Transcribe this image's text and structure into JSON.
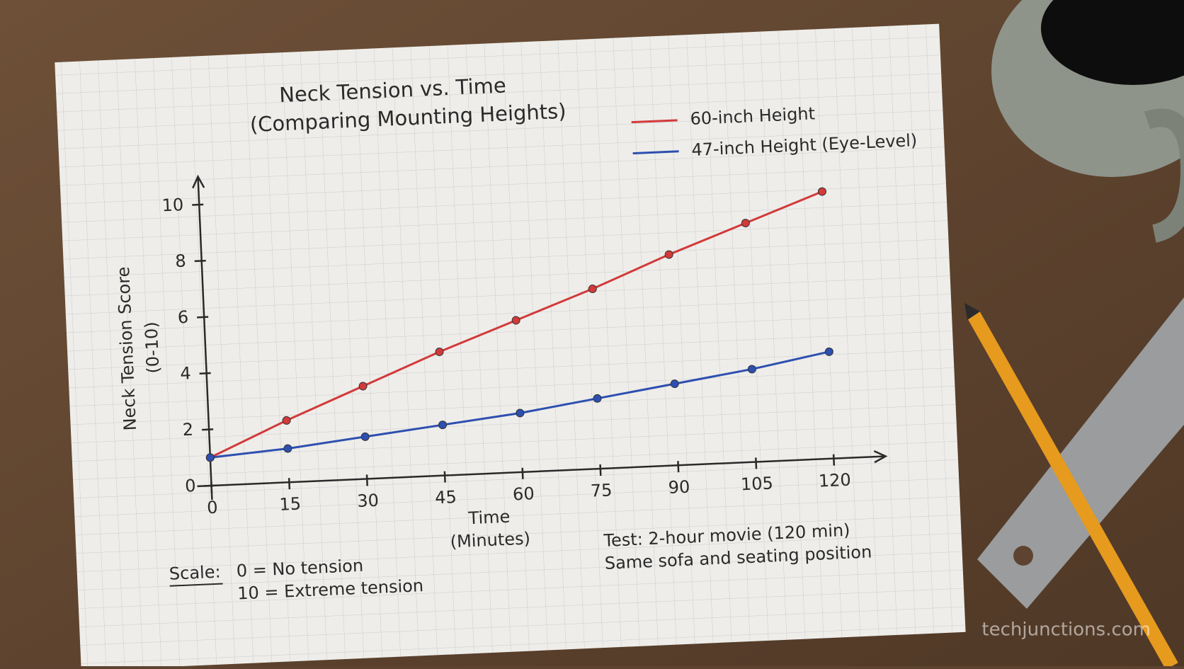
{
  "chart_data": {
    "type": "line",
    "title": [
      "Neck Tension vs. Time",
      "(Comparing Mounting Heights)"
    ],
    "x_label": [
      "Time",
      "(Minutes)"
    ],
    "y_label": [
      "Neck Tension Score",
      "(0-10)"
    ],
    "x": [
      0,
      15,
      30,
      45,
      60,
      75,
      90,
      105,
      120
    ],
    "series": [
      {
        "name": "60-inch Height",
        "color": "#d23a3a",
        "values": [
          1.0,
          2.2,
          3.3,
          4.4,
          5.4,
          6.4,
          7.5,
          8.5,
          9.5
        ]
      },
      {
        "name": "47-inch Height (Eye-Level)",
        "color": "#2d4fb0",
        "values": [
          1.0,
          1.2,
          1.5,
          1.8,
          2.1,
          2.5,
          2.9,
          3.3,
          3.8
        ]
      }
    ],
    "xlim": [
      0,
      130
    ],
    "ylim": [
      0,
      11
    ],
    "xticks": [
      0,
      15,
      30,
      45,
      60,
      75,
      90,
      105,
      120
    ],
    "yticks": [
      0,
      2,
      4,
      6,
      8,
      10
    ],
    "legend": "top-right",
    "notes": [
      "Scale:",
      "0 = No tension",
      "10 = Extreme tension",
      "Test: 2-hour movie (120 min)",
      "Same sofa and seating position"
    ],
    "watermark": "techjunctions.com"
  }
}
